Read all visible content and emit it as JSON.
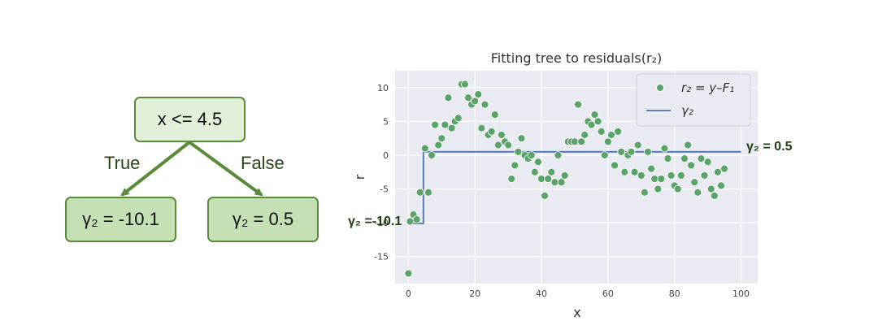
{
  "tree": {
    "root_label": "x <= 4.5",
    "true_label": "True",
    "false_label": "False",
    "left_leaf": "γ₂ = -10.1",
    "right_leaf": "γ₂ = 0.5"
  },
  "annotations": {
    "right": "γ₂ = 0.5",
    "left": "γ₂ =-10.1"
  },
  "chart_data": {
    "type": "scatter",
    "title": "Fitting tree to residuals(r₂)",
    "xlabel": "x",
    "ylabel": "r",
    "xlim": [
      -4,
      105
    ],
    "ylim": [
      -19,
      12.5
    ],
    "xticks": [
      0,
      20,
      40,
      60,
      80,
      100
    ],
    "yticks": [
      -15,
      -10,
      -5,
      0,
      5,
      10
    ],
    "grid": true,
    "legend_placement": "top-right",
    "legend": [
      "r₂ = y–F₁",
      "γ₂"
    ],
    "colors": {
      "points": "#5aa469",
      "line": "#4c72b0",
      "background": "#eaeaf2",
      "grid": "#ffffff"
    },
    "series": [
      {
        "name": "r₂ = y–F₁",
        "kind": "scatter",
        "points": [
          [
            0,
            -17.5
          ],
          [
            0.5,
            -9.8
          ],
          [
            1.5,
            -8.8
          ],
          [
            2.5,
            -9.5
          ],
          [
            3.5,
            -5.5
          ],
          [
            5,
            1
          ],
          [
            6,
            -5.5
          ],
          [
            7,
            0
          ],
          [
            8,
            4.5
          ],
          [
            9,
            1.5
          ],
          [
            10,
            2.5
          ],
          [
            11,
            4.5
          ],
          [
            12,
            8.5
          ],
          [
            13,
            4
          ],
          [
            14,
            5
          ],
          [
            15,
            5.5
          ],
          [
            16,
            10.5
          ],
          [
            17,
            10.5
          ],
          [
            18,
            8.5
          ],
          [
            19,
            7.5
          ],
          [
            20,
            8
          ],
          [
            21,
            9
          ],
          [
            22,
            4
          ],
          [
            23,
            7.5
          ],
          [
            24,
            3
          ],
          [
            25,
            3.5
          ],
          [
            26,
            6
          ],
          [
            27,
            1.5
          ],
          [
            28,
            3
          ],
          [
            29,
            2
          ],
          [
            30,
            1.5
          ],
          [
            31,
            -3.5
          ],
          [
            32,
            -1.5
          ],
          [
            33,
            0.5
          ],
          [
            34,
            2.5
          ],
          [
            35,
            0
          ],
          [
            36,
            -0.5
          ],
          [
            37,
            0
          ],
          [
            38,
            -2.5
          ],
          [
            39,
            -1
          ],
          [
            40,
            -3.5
          ],
          [
            41,
            -6
          ],
          [
            42,
            -3.5
          ],
          [
            43,
            -2.5
          ],
          [
            44,
            -4
          ],
          [
            45,
            0
          ],
          [
            46,
            -4
          ],
          [
            47,
            -3
          ],
          [
            48,
            2
          ],
          [
            49,
            2
          ],
          [
            50,
            2
          ],
          [
            51,
            7.5
          ],
          [
            52,
            2
          ],
          [
            53,
            3
          ],
          [
            54,
            5
          ],
          [
            55,
            4.5
          ],
          [
            56,
            6
          ],
          [
            57,
            5
          ],
          [
            58,
            3.5
          ],
          [
            59,
            0
          ],
          [
            60,
            2
          ],
          [
            61,
            3
          ],
          [
            62,
            -1.5
          ],
          [
            63,
            3.5
          ],
          [
            64,
            0.5
          ],
          [
            65,
            -2.5
          ],
          [
            66,
            0
          ],
          [
            67,
            0.5
          ],
          [
            68,
            -2.5
          ],
          [
            69,
            1.5
          ],
          [
            70,
            -3
          ],
          [
            71,
            -5.5
          ],
          [
            72,
            0.5
          ],
          [
            73,
            -2
          ],
          [
            74,
            -3.5
          ],
          [
            75,
            -5
          ],
          [
            76,
            -3.5
          ],
          [
            77,
            1
          ],
          [
            78,
            -0.5
          ],
          [
            79,
            -3
          ],
          [
            80,
            -4.5
          ],
          [
            81,
            -5
          ],
          [
            82,
            -3
          ],
          [
            83,
            -0.5
          ],
          [
            84,
            1.5
          ],
          [
            85,
            -1.5
          ],
          [
            86,
            -4
          ],
          [
            87,
            -5.5
          ],
          [
            88,
            -0.5
          ],
          [
            89,
            -3
          ],
          [
            90,
            -1
          ],
          [
            91,
            -5
          ],
          [
            92,
            -6
          ],
          [
            93,
            -2.5
          ],
          [
            94,
            -4.5
          ],
          [
            95,
            -2
          ]
        ]
      },
      {
        "name": "γ₂",
        "kind": "step",
        "points": [
          [
            0,
            -10.1
          ],
          [
            4.5,
            -10.1
          ],
          [
            4.5,
            0.5
          ],
          [
            100,
            0.5
          ]
        ]
      }
    ]
  }
}
